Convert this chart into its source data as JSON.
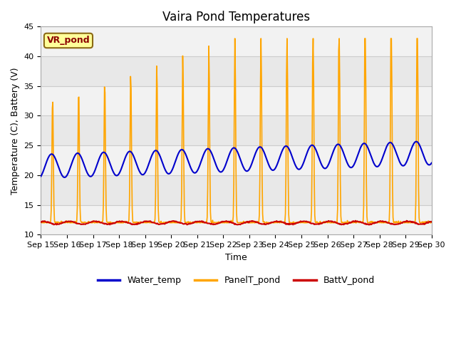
{
  "title": "Vaira Pond Temperatures",
  "xlabel": "Time",
  "ylabel": "Temperature (C), Battery (V)",
  "ylim": [
    10,
    45
  ],
  "xlim": [
    0,
    15
  ],
  "site_label": "VR_pond",
  "xtick_labels": [
    "Sep 15",
    "Sep 16",
    "Sep 17",
    "Sep 18",
    "Sep 19",
    "Sep 20",
    "Sep 21",
    "Sep 22",
    "Sep 23",
    "Sep 24",
    "Sep 25",
    "Sep 26",
    "Sep 27",
    "Sep 28",
    "Sep 29",
    "Sep 30"
  ],
  "ytick_vals": [
    10,
    15,
    20,
    25,
    30,
    35,
    40,
    45
  ],
  "fig_color": "#ffffff",
  "bg_color": "#e8e8e8",
  "water_color": "#0000cc",
  "panel_color": "#ffa500",
  "batt_color": "#cc0000",
  "legend_labels": [
    "Water_temp",
    "PanelT_pond",
    "BattV_pond"
  ],
  "title_fontsize": 12,
  "label_fontsize": 9,
  "tick_fontsize": 8
}
